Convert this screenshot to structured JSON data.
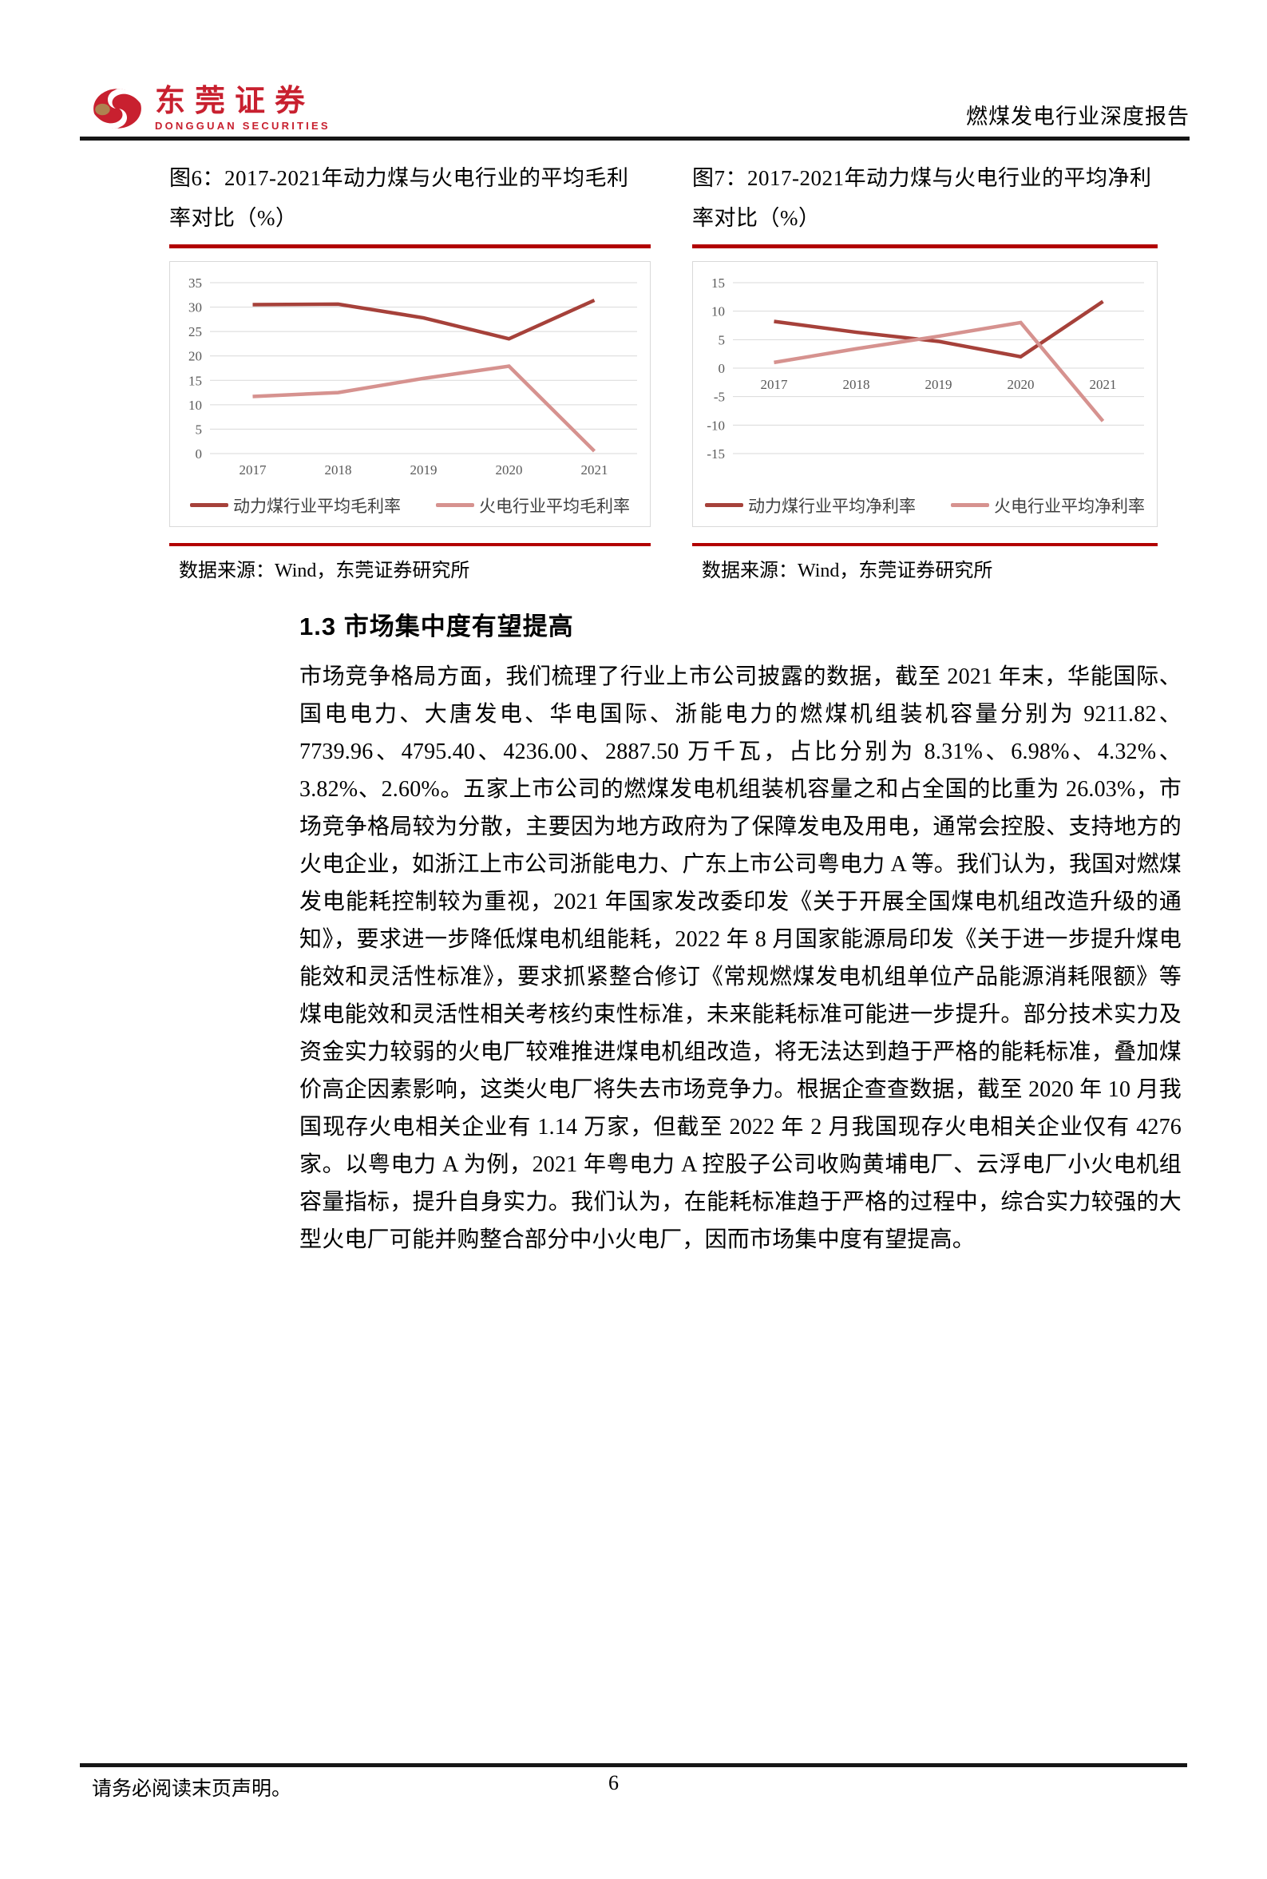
{
  "header": {
    "logo_cn": "东莞证券",
    "logo_en": "DONGGUAN SECURITIES",
    "report_title": "燃煤发电行业深度报告"
  },
  "figures": [
    {
      "title_line1": "图6：2017-2021年动力煤与火电行业的平均毛利",
      "title_line2": "率对比（%）",
      "source": "数据来源：Wind，东莞证券研究所"
    },
    {
      "title_line1": "图7：2017-2021年动力煤与火电行业的平均净利",
      "title_line2": "率对比（%）",
      "source": "数据来源：Wind，东莞证券研究所"
    }
  ],
  "chart_data": [
    {
      "type": "line",
      "title": "图6：2017-2021年动力煤与火电行业的平均毛利率对比（%）",
      "categories": [
        "2017",
        "2018",
        "2019",
        "2020",
        "2021"
      ],
      "series": [
        {
          "name": "动力煤行业平均毛利率",
          "values": [
            30.5,
            30.6,
            27.8,
            23.5,
            31.4
          ],
          "color": "#a6413a"
        },
        {
          "name": "火电行业平均毛利率",
          "values": [
            11.7,
            12.5,
            15.4,
            17.9,
            0.5
          ],
          "color": "#d6928f"
        }
      ],
      "xlabel": "",
      "ylabel": "",
      "ylim": [
        0,
        35
      ],
      "ytick_step": 5,
      "grid": true,
      "legend_position": "bottom"
    },
    {
      "type": "line",
      "title": "图7：2017-2021年动力煤与火电行业的平均净利率对比（%）",
      "categories": [
        "2017",
        "2018",
        "2019",
        "2020",
        "2021"
      ],
      "series": [
        {
          "name": "动力煤行业平均净利率",
          "values": [
            8.2,
            6.3,
            4.7,
            2.0,
            11.7
          ],
          "color": "#a6413a"
        },
        {
          "name": "火电行业平均净利率",
          "values": [
            1.0,
            3.4,
            5.6,
            8.0,
            -9.3
          ],
          "color": "#d6928f"
        }
      ],
      "xlabel": "",
      "ylabel": "",
      "ylim": [
        -15,
        15
      ],
      "ytick_step": 5,
      "grid": true,
      "legend_position": "bottom"
    }
  ],
  "section": {
    "heading": "1.3 市场集中度有望提高"
  },
  "body_paragraph": "市场竞争格局方面，我们梳理了行业上市公司披露的数据，截至 2021 年末，华能国际、国电电力、大唐发电、华电国际、浙能电力的燃煤机组装机容量分别为 9211.82、7739.96、4795.40、4236.00、2887.50 万千瓦，占比分别为 8.31%、6.98%、4.32%、3.82%、2.60%。五家上市公司的燃煤发电机组装机容量之和占全国的比重为 26.03%，市场竞争格局较为分散，主要因为地方政府为了保障发电及用电，通常会控股、支持地方的火电企业，如浙江上市公司浙能电力、广东上市公司粤电力 A 等。我们认为，我国对燃煤发电能耗控制较为重视，2021 年国家发改委印发《关于开展全国煤电机组改造升级的通知》，要求进一步降低煤电机组能耗，2022 年 8 月国家能源局印发《关于进一步提升煤电能效和灵活性标准》，要求抓紧整合修订《常规燃煤发电机组单位产品能源消耗限额》等煤电能效和灵活性相关考核约束性标准，未来能耗标准可能进一步提升。部分技术实力及资金实力较弱的火电厂较难推进煤电机组改造，将无法达到趋于严格的能耗标准，叠加煤价高企因素影响，这类火电厂将失去市场竞争力。根据企查查数据，截至 2020 年 10 月我国现存火电相关企业有 1.14 万家，但截至 2022 年 2 月我国现存火电相关企业仅有 4276 家。以粤电力 A 为例，2021 年粤电力 A 控股子公司收购黄埔电厂、云浮电厂小火电机组容量指标，提升自身实力。我们认为，在能耗标准趋于严格的过程中，综合实力较强的大型火电厂可能并购整合部分中小火电厂，因而市场集中度有望提高。",
  "footer": {
    "disclaimer": "请务必阅读末页声明。",
    "page_number": "6"
  },
  "colors": {
    "accent_red": "#b20000",
    "rule_black": "#161616",
    "series_dark_red": "#a6413a",
    "series_light_red": "#d6928f",
    "gridline_gray": "#d9d9d9"
  }
}
